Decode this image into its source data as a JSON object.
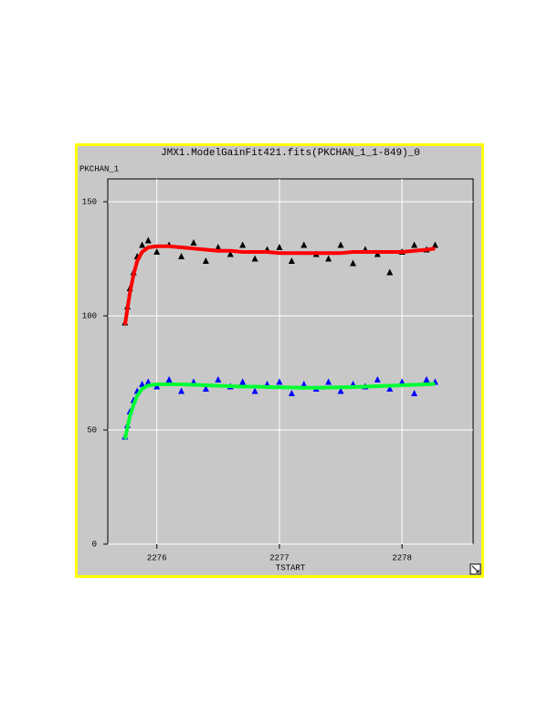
{
  "chart_data": {
    "type": "scatter",
    "title": "JMX1.ModelGainFit421.fits(PKCHAN_1_1-849)_0",
    "y_label": "PKCHAN_1",
    "x_label": "TSTART",
    "xlim": [
      2275.6,
      2278.58
    ],
    "xticks": [
      2276,
      2277,
      2278
    ],
    "ylim": [
      0,
      160
    ],
    "yticks": [
      0,
      50,
      100,
      150
    ],
    "grid": true,
    "x": [
      2275.74,
      2275.76,
      2275.78,
      2275.81,
      2275.84,
      2275.88,
      2275.93,
      2276.0,
      2276.1,
      2276.2,
      2276.3,
      2276.4,
      2276.5,
      2276.6,
      2276.7,
      2276.8,
      2276.9,
      2277.0,
      2277.1,
      2277.2,
      2277.3,
      2277.4,
      2277.5,
      2277.6,
      2277.7,
      2277.8,
      2277.9,
      2278.0,
      2278.1,
      2278.2,
      2278.27
    ],
    "series": [
      {
        "color": "#000000",
        "marker": "triangle",
        "values": [
          97,
          104,
          112,
          119,
          126,
          131,
          133,
          128,
          131,
          126,
          132,
          124,
          130,
          127,
          131,
          125,
          129,
          130,
          124,
          131,
          127,
          125,
          131,
          123,
          129,
          127,
          119,
          128,
          131,
          129,
          131
        ]
      },
      {
        "color": "#ff0000",
        "marker": "line",
        "values": [
          96,
          103,
          110,
          118,
          124,
          128,
          130,
          130.5,
          130.5,
          130,
          129.5,
          129,
          128.5,
          128.5,
          128,
          128,
          128,
          127.5,
          127.5,
          127.5,
          127.5,
          127.5,
          127.5,
          128,
          128,
          128,
          128,
          128,
          128.5,
          129,
          129.5
        ]
      },
      {
        "color": "#0000ff",
        "marker": "triangle",
        "values": [
          47,
          52,
          58,
          63,
          67,
          70,
          71,
          69,
          72,
          67,
          71,
          68,
          72,
          69,
          71,
          67,
          70,
          71,
          66,
          70,
          68,
          71,
          67,
          70,
          69,
          72,
          68,
          71,
          66,
          72,
          71
        ]
      },
      {
        "color": "#00ff33",
        "marker": "line",
        "values": [
          46,
          51,
          56,
          61,
          65,
          68,
          69.5,
          70,
          70,
          70,
          69.8,
          69.6,
          69.4,
          69.2,
          69,
          69,
          68.8,
          68.7,
          68.6,
          68.5,
          68.5,
          68.6,
          68.7,
          68.8,
          69,
          69.2,
          69.4,
          69.6,
          69.8,
          70,
          70.2
        ]
      }
    ]
  }
}
